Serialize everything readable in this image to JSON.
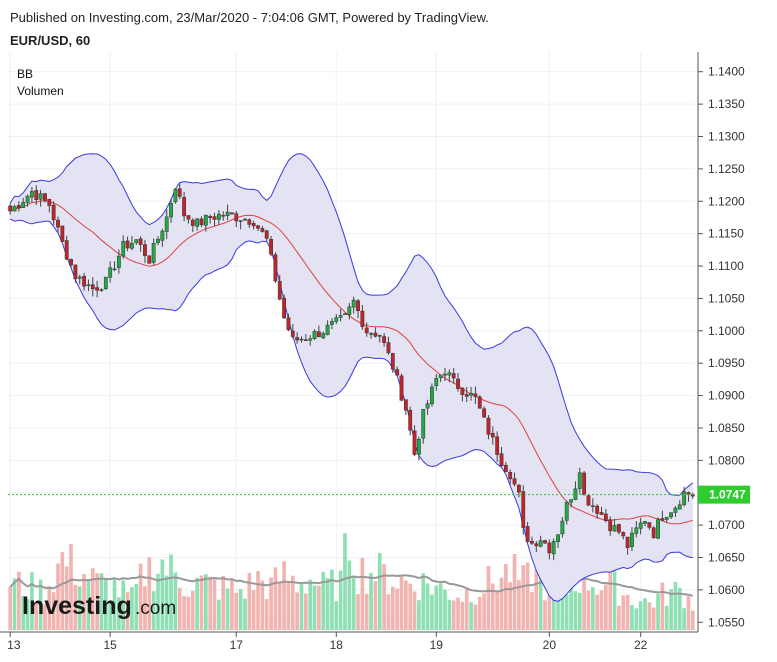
{
  "header": {
    "published": "Published on Investing.com, 23/Mar/2020 - 7:04:06 GMT, Powered by TradingView.",
    "symbol": "EUR/USD, 60"
  },
  "legend": [
    "BB",
    "Volumen"
  ],
  "branding": {
    "logo": "Investing",
    "logo_suffix": ".com"
  },
  "colors": {
    "up": "#22aa44",
    "down": "#c0252a",
    "upper_lower_band": "#3a3ae0",
    "band_fill": "#e3e3f3",
    "basis": "#e04040",
    "vol_up": "#8ee0b4",
    "vol_down": "#f2b4b0",
    "vol_ma": "#999999",
    "last_price": "#2ecc2e"
  },
  "chart_data": {
    "type": "candlestick",
    "title": "EUR/USD, 60",
    "y_ticks": [
      "1.1400",
      "1.1350",
      "1.1300",
      "1.1250",
      "1.1200",
      "1.1150",
      "1.1100",
      "1.1050",
      "1.1000",
      "1.0950",
      "1.0900",
      "1.0850",
      "1.0800",
      "1.0750",
      "1.0700",
      "1.0650",
      "1.0600",
      "1.0550"
    ],
    "ylim": [
      1.0535,
      1.1415
    ],
    "x_ticks": [
      "13",
      "15",
      "17",
      "18",
      "19",
      "20",
      "22"
    ],
    "x_tick_index": [
      0,
      23,
      52,
      75,
      98,
      124,
      145
    ],
    "bar_count": 158,
    "last_price": "1.0747",
    "indicators": [
      "Bollinger Bands",
      "Volume"
    ],
    "price_path": [
      [
        0,
        1.1185
      ],
      [
        5,
        1.1215
      ],
      [
        9,
        1.1195
      ],
      [
        12,
        1.1135
      ],
      [
        15,
        1.1085
      ],
      [
        17,
        1.1075
      ],
      [
        19,
        1.1065
      ],
      [
        22,
        1.1075
      ],
      [
        26,
        1.113
      ],
      [
        29,
        1.114
      ],
      [
        32,
        1.111
      ],
      [
        36,
        1.1175
      ],
      [
        38,
        1.1225
      ],
      [
        40,
        1.118
      ],
      [
        43,
        1.1165
      ],
      [
        46,
        1.1175
      ],
      [
        49,
        1.118
      ],
      [
        53,
        1.1175
      ],
      [
        56,
        1.117
      ],
      [
        59,
        1.114
      ],
      [
        61,
        1.108
      ],
      [
        63,
        1.102
      ],
      [
        65,
        1.0985
      ],
      [
        68,
        1.099
      ],
      [
        72,
        1.1
      ],
      [
        77,
        1.102
      ],
      [
        79,
        1.1045
      ],
      [
        82,
        1.1
      ],
      [
        85,
        1.0995
      ],
      [
        88,
        1.0945
      ],
      [
        91,
        1.088
      ],
      [
        93,
        1.081
      ],
      [
        95,
        1.087
      ],
      [
        98,
        1.0925
      ],
      [
        100,
        1.094
      ],
      [
        102,
        1.092
      ],
      [
        105,
        1.0905
      ],
      [
        107,
        1.0895
      ],
      [
        109,
        1.086
      ],
      [
        111,
        1.083
      ],
      [
        113,
        1.08
      ],
      [
        115,
        1.078
      ],
      [
        117,
        1.0745
      ],
      [
        118,
        1.069
      ],
      [
        120,
        1.0672
      ],
      [
        122,
        1.068
      ],
      [
        124,
        1.0665
      ],
      [
        126,
        1.069
      ],
      [
        128,
        1.073
      ],
      [
        130,
        1.0762
      ],
      [
        131,
        1.079
      ],
      [
        132,
        1.0745
      ],
      [
        135,
        1.0725
      ],
      [
        138,
        1.07
      ],
      [
        140,
        1.069
      ],
      [
        142,
        1.0668
      ],
      [
        144,
        1.0692
      ],
      [
        146,
        1.071
      ],
      [
        148,
        1.0688
      ],
      [
        150,
        1.0715
      ],
      [
        153,
        1.073
      ],
      [
        155,
        1.075
      ],
      [
        157,
        1.0747
      ]
    ],
    "volume": [
      [
        0,
        60
      ],
      [
        8,
        50
      ],
      [
        12,
        90
      ],
      [
        16,
        75
      ],
      [
        20,
        60
      ],
      [
        24,
        55
      ],
      [
        28,
        40
      ],
      [
        31,
        75
      ],
      [
        35,
        85
      ],
      [
        38,
        70
      ],
      [
        40,
        60
      ],
      [
        44,
        60
      ],
      [
        48,
        55
      ],
      [
        53,
        50
      ],
      [
        57,
        65
      ],
      [
        60,
        55
      ],
      [
        63,
        70
      ],
      [
        66,
        60
      ],
      [
        69,
        65
      ],
      [
        72,
        55
      ],
      [
        76,
        60
      ],
      [
        78,
        120
      ],
      [
        80,
        75
      ],
      [
        84,
        75
      ],
      [
        88,
        65
      ],
      [
        92,
        60
      ],
      [
        96,
        60
      ],
      [
        100,
        50
      ],
      [
        104,
        45
      ],
      [
        108,
        55
      ],
      [
        112,
        65
      ],
      [
        115,
        75
      ],
      [
        118,
        60
      ],
      [
        120,
        70
      ],
      [
        124,
        55
      ],
      [
        127,
        45
      ],
      [
        131,
        70
      ],
      [
        135,
        60
      ],
      [
        139,
        55
      ],
      [
        143,
        40
      ],
      [
        147,
        35
      ],
      [
        150,
        45
      ],
      [
        154,
        50
      ],
      [
        157,
        35
      ]
    ]
  }
}
